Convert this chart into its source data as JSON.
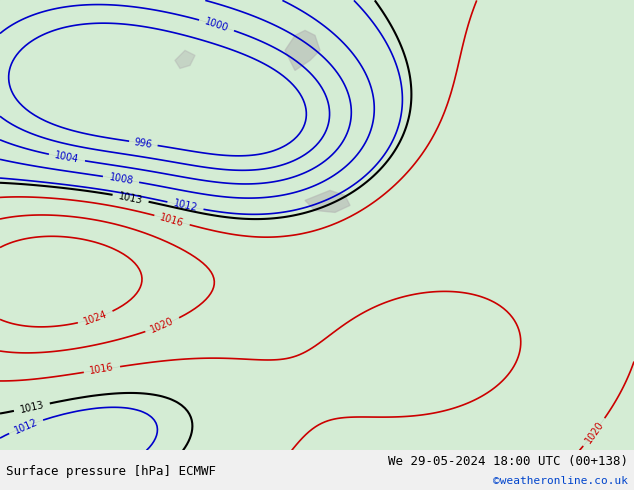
{
  "title_left": "Surface pressure [hPa] ECMWF",
  "title_right": "We 29-05-2024 18:00 UTC (00+138)",
  "credit": "©weatheronline.co.uk",
  "bg_color": "#e8f4e8",
  "land_color": "#c8e6c8",
  "sea_color": "#ddeedd",
  "mountain_color": "#b0b0b0",
  "red_contour_color": "#cc0000",
  "blue_contour_color": "#0000cc",
  "black_contour_color": "#000000",
  "label_fontsize": 7,
  "footer_fontsize": 9,
  "credit_fontsize": 8,
  "credit_color": "#0044cc"
}
